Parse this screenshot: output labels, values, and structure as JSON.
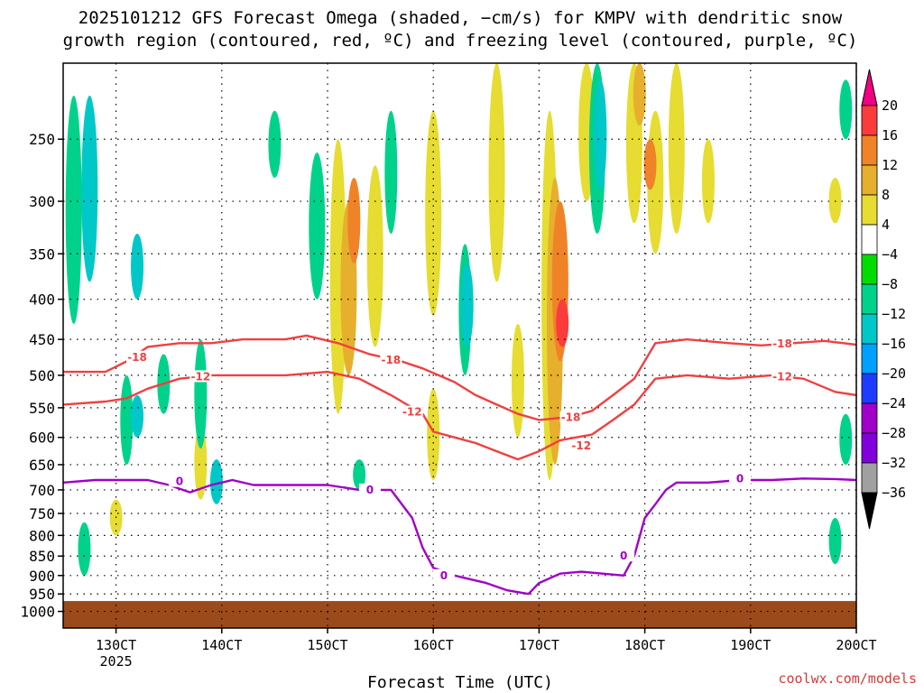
{
  "title_line1": "2025101212 GFS Forecast Omega (shaded, −cm/s) for KMPV with dendritic snow",
  "title_line2": "growth region (contoured, red, ºC) and freezing level (contoured, purple, ºC)",
  "credit": "coolwx.com/models",
  "chart_data": {
    "type": "heatmap",
    "title": "2025101212 GFS Forecast Omega (shaded, −cm/s) for KMPV with dendritic snow growth region (contoured, red, ºC) and freezing level (contoured, purple, ºC)",
    "xlabel": "Forecast Time (UTC)",
    "ylabel": "",
    "y_scale": "log-pressure (inverted)",
    "y_ticks_hPa": [
      250,
      300,
      350,
      400,
      450,
      500,
      550,
      600,
      650,
      700,
      750,
      800,
      850,
      900,
      950,
      1000
    ],
    "x_ticks": [
      {
        "label": "130CT",
        "day": 13
      },
      {
        "label": "140CT",
        "day": 14
      },
      {
        "label": "150CT",
        "day": 15
      },
      {
        "label": "160CT",
        "day": 16
      },
      {
        "label": "170CT",
        "day": 17
      },
      {
        "label": "180CT",
        "day": 18
      },
      {
        "label": "190CT",
        "day": 19
      },
      {
        "label": "200CT",
        "day": 20
      }
    ],
    "x_year_label": "2025",
    "xlim_day": [
      12.5,
      20.0
    ],
    "ylim_hPa": [
      200,
      1050
    ],
    "grid": true,
    "colorbar_levels": [
      -36,
      -32,
      -28,
      -24,
      -20,
      -16,
      -12,
      -8,
      -4,
      4,
      8,
      12,
      16,
      20
    ],
    "colorbar_colors": [
      "#000000",
      "#a0a0a0",
      "#8200dc",
      "#a000c8",
      "#1e3cff",
      "#00a0ff",
      "#00c8c8",
      "#00d28c",
      "#00dc00",
      "#ffffff",
      "#e6dc32",
      "#e6af2d",
      "#f08228",
      "#fa3c3c",
      "#f00082"
    ],
    "contours": [
      {
        "name": "-18",
        "color": "#f04040",
        "points": [
          [
            12.5,
            495
          ],
          [
            12.9,
            495
          ],
          [
            13.1,
            480
          ],
          [
            13.3,
            460
          ],
          [
            13.6,
            455
          ],
          [
            13.9,
            455
          ],
          [
            14.2,
            450
          ],
          [
            14.6,
            450
          ],
          [
            14.8,
            445
          ],
          [
            15.1,
            455
          ],
          [
            15.4,
            470
          ],
          [
            15.7,
            480
          ],
          [
            15.9,
            490
          ],
          [
            16.2,
            510
          ],
          [
            16.4,
            530
          ],
          [
            16.6,
            545
          ],
          [
            16.8,
            560
          ],
          [
            17.0,
            570
          ],
          [
            17.3,
            565
          ],
          [
            17.5,
            555
          ],
          [
            17.7,
            530
          ],
          [
            17.9,
            505
          ],
          [
            18.1,
            455
          ],
          [
            18.4,
            450
          ],
          [
            18.8,
            455
          ],
          [
            19.1,
            458
          ],
          [
            19.4,
            455
          ],
          [
            19.7,
            452
          ],
          [
            20.0,
            457
          ]
        ]
      },
      {
        "name": "-12",
        "color": "#f04040",
        "points": [
          [
            12.5,
            545
          ],
          [
            12.9,
            540
          ],
          [
            13.1,
            535
          ],
          [
            13.3,
            520
          ],
          [
            13.6,
            505
          ],
          [
            13.9,
            500
          ],
          [
            14.2,
            500
          ],
          [
            14.6,
            500
          ],
          [
            15.0,
            495
          ],
          [
            15.3,
            505
          ],
          [
            15.6,
            530
          ],
          [
            15.9,
            560
          ],
          [
            16.0,
            590
          ],
          [
            16.2,
            600
          ],
          [
            16.4,
            610
          ],
          [
            16.6,
            625
          ],
          [
            16.8,
            640
          ],
          [
            17.0,
            625
          ],
          [
            17.2,
            605
          ],
          [
            17.5,
            595
          ],
          [
            17.7,
            570
          ],
          [
            17.9,
            545
          ],
          [
            18.1,
            505
          ],
          [
            18.4,
            500
          ],
          [
            18.8,
            505
          ],
          [
            19.2,
            500
          ],
          [
            19.5,
            505
          ],
          [
            19.8,
            525
          ],
          [
            20.0,
            530
          ]
        ]
      },
      {
        "name": "0",
        "color": "#a000c8",
        "points": [
          [
            12.5,
            685
          ],
          [
            12.8,
            680
          ],
          [
            13.0,
            680
          ],
          [
            13.3,
            680
          ],
          [
            13.5,
            690
          ],
          [
            13.7,
            705
          ],
          [
            13.9,
            690
          ],
          [
            14.1,
            680
          ],
          [
            14.3,
            690
          ],
          [
            14.6,
            690
          ],
          [
            15.0,
            690
          ],
          [
            15.3,
            700
          ],
          [
            15.6,
            700
          ],
          [
            15.8,
            760
          ],
          [
            15.9,
            830
          ],
          [
            16.0,
            880
          ],
          [
            16.2,
            900
          ],
          [
            16.5,
            920
          ],
          [
            16.7,
            940
          ],
          [
            16.9,
            950
          ],
          [
            17.0,
            920
          ],
          [
            17.2,
            895
          ],
          [
            17.4,
            890
          ],
          [
            17.6,
            895
          ],
          [
            17.8,
            900
          ],
          [
            17.9,
            850
          ],
          [
            18.0,
            760
          ],
          [
            18.1,
            730
          ],
          [
            18.2,
            700
          ],
          [
            18.3,
            685
          ],
          [
            18.6,
            685
          ],
          [
            18.9,
            680
          ],
          [
            19.2,
            680
          ],
          [
            19.5,
            677
          ],
          [
            19.8,
            678
          ],
          [
            20.0,
            680
          ]
        ]
      }
    ],
    "contour_labels": [
      {
        "text": "-18",
        "x_day": 13.2,
        "y_hPa": 474,
        "color": "#f04040"
      },
      {
        "text": "-12",
        "x_day": 13.8,
        "y_hPa": 502,
        "color": "#f04040"
      },
      {
        "text": "-18",
        "x_day": 15.6,
        "y_hPa": 478,
        "color": "#f04040"
      },
      {
        "text": "-12",
        "x_day": 15.8,
        "y_hPa": 557,
        "color": "#f04040"
      },
      {
        "text": "-18",
        "x_day": 17.3,
        "y_hPa": 566,
        "color": "#f04040"
      },
      {
        "text": "-12",
        "x_day": 17.4,
        "y_hPa": 615,
        "color": "#f04040"
      },
      {
        "text": "-18",
        "x_day": 19.3,
        "y_hPa": 456,
        "color": "#f04040"
      },
      {
        "text": "-12",
        "x_day": 19.3,
        "y_hPa": 502,
        "color": "#f04040"
      },
      {
        "text": "0",
        "x_day": 13.6,
        "y_hPa": 683,
        "color": "#a000c8"
      },
      {
        "text": "0",
        "x_day": 15.4,
        "y_hPa": 700,
        "color": "#a000c8"
      },
      {
        "text": "0",
        "x_day": 16.1,
        "y_hPa": 900,
        "color": "#a000c8"
      },
      {
        "text": "0",
        "x_day": 17.8,
        "y_hPa": 850,
        "color": "#a000c8"
      },
      {
        "text": "0",
        "x_day": 18.9,
        "y_hPa": 677,
        "color": "#a000c8"
      }
    ],
    "shaded_regions": [
      {
        "x_day": 12.6,
        "y1": 220,
        "y2": 430,
        "level": -8
      },
      {
        "x_day": 12.75,
        "y1": 220,
        "y2": 380,
        "level": -12
      },
      {
        "x_day": 13.2,
        "y1": 330,
        "y2": 400,
        "level": -12
      },
      {
        "x_day": 13.1,
        "y1": 500,
        "y2": 650,
        "level": -8
      },
      {
        "x_day": 13.2,
        "y1": 530,
        "y2": 600,
        "level": -12
      },
      {
        "x_day": 13.45,
        "y1": 470,
        "y2": 560,
        "level": -8
      },
      {
        "x_day": 13.8,
        "y1": 580,
        "y2": 720,
        "level": 4
      },
      {
        "x_day": 13.8,
        "y1": 450,
        "y2": 620,
        "level": -8
      },
      {
        "x_day": 13.95,
        "y1": 640,
        "y2": 730,
        "level": -12
      },
      {
        "x_day": 12.7,
        "y1": 770,
        "y2": 900,
        "level": -8
      },
      {
        "x_day": 13.0,
        "y1": 720,
        "y2": 800,
        "level": 4
      },
      {
        "x_day": 14.5,
        "y1": 230,
        "y2": 280,
        "level": -8
      },
      {
        "x_day": 14.9,
        "y1": 260,
        "y2": 400,
        "level": -8
      },
      {
        "x_day": 15.1,
        "y1": 250,
        "y2": 560,
        "level": 4
      },
      {
        "x_day": 15.2,
        "y1": 300,
        "y2": 500,
        "level": 8
      },
      {
        "x_day": 15.25,
        "y1": 280,
        "y2": 360,
        "level": 12
      },
      {
        "x_day": 15.45,
        "y1": 270,
        "y2": 460,
        "level": 4
      },
      {
        "x_day": 15.3,
        "y1": 640,
        "y2": 700,
        "level": -8
      },
      {
        "x_day": 15.6,
        "y1": 230,
        "y2": 330,
        "level": -8
      },
      {
        "x_day": 16.0,
        "y1": 230,
        "y2": 420,
        "level": 4
      },
      {
        "x_day": 16.0,
        "y1": 520,
        "y2": 680,
        "level": 4
      },
      {
        "x_day": 16.3,
        "y1": 340,
        "y2": 500,
        "level": -8
      },
      {
        "x_day": 16.32,
        "y1": 360,
        "y2": 460,
        "level": -12
      },
      {
        "x_day": 16.6,
        "y1": 200,
        "y2": 380,
        "level": 4
      },
      {
        "x_day": 16.8,
        "y1": 430,
        "y2": 600,
        "level": 4
      },
      {
        "x_day": 17.1,
        "y1": 230,
        "y2": 680,
        "level": 4
      },
      {
        "x_day": 17.15,
        "y1": 280,
        "y2": 650,
        "level": 8
      },
      {
        "x_day": 17.2,
        "y1": 300,
        "y2": 480,
        "level": 12
      },
      {
        "x_day": 17.22,
        "y1": 400,
        "y2": 460,
        "level": 16
      },
      {
        "x_day": 17.45,
        "y1": 200,
        "y2": 300,
        "level": 4
      },
      {
        "x_day": 17.55,
        "y1": 200,
        "y2": 330,
        "level": -8
      },
      {
        "x_day": 17.58,
        "y1": 210,
        "y2": 290,
        "level": -12
      },
      {
        "x_day": 17.9,
        "y1": 200,
        "y2": 320,
        "level": 4
      },
      {
        "x_day": 17.95,
        "y1": 200,
        "y2": 240,
        "level": 8
      },
      {
        "x_day": 18.1,
        "y1": 230,
        "y2": 350,
        "level": 4
      },
      {
        "x_day": 18.05,
        "y1": 250,
        "y2": 290,
        "level": 12
      },
      {
        "x_day": 18.3,
        "y1": 200,
        "y2": 330,
        "level": 4
      },
      {
        "x_day": 18.6,
        "y1": 250,
        "y2": 320,
        "level": 4
      },
      {
        "x_day": 19.9,
        "y1": 210,
        "y2": 250,
        "level": -8
      },
      {
        "x_day": 19.8,
        "y1": 280,
        "y2": 320,
        "level": 4
      },
      {
        "x_day": 19.9,
        "y1": 560,
        "y2": 650,
        "level": -8
      },
      {
        "x_day": 19.8,
        "y1": 760,
        "y2": 870,
        "level": -8
      }
    ],
    "terrain_top_hPa": 970
  }
}
